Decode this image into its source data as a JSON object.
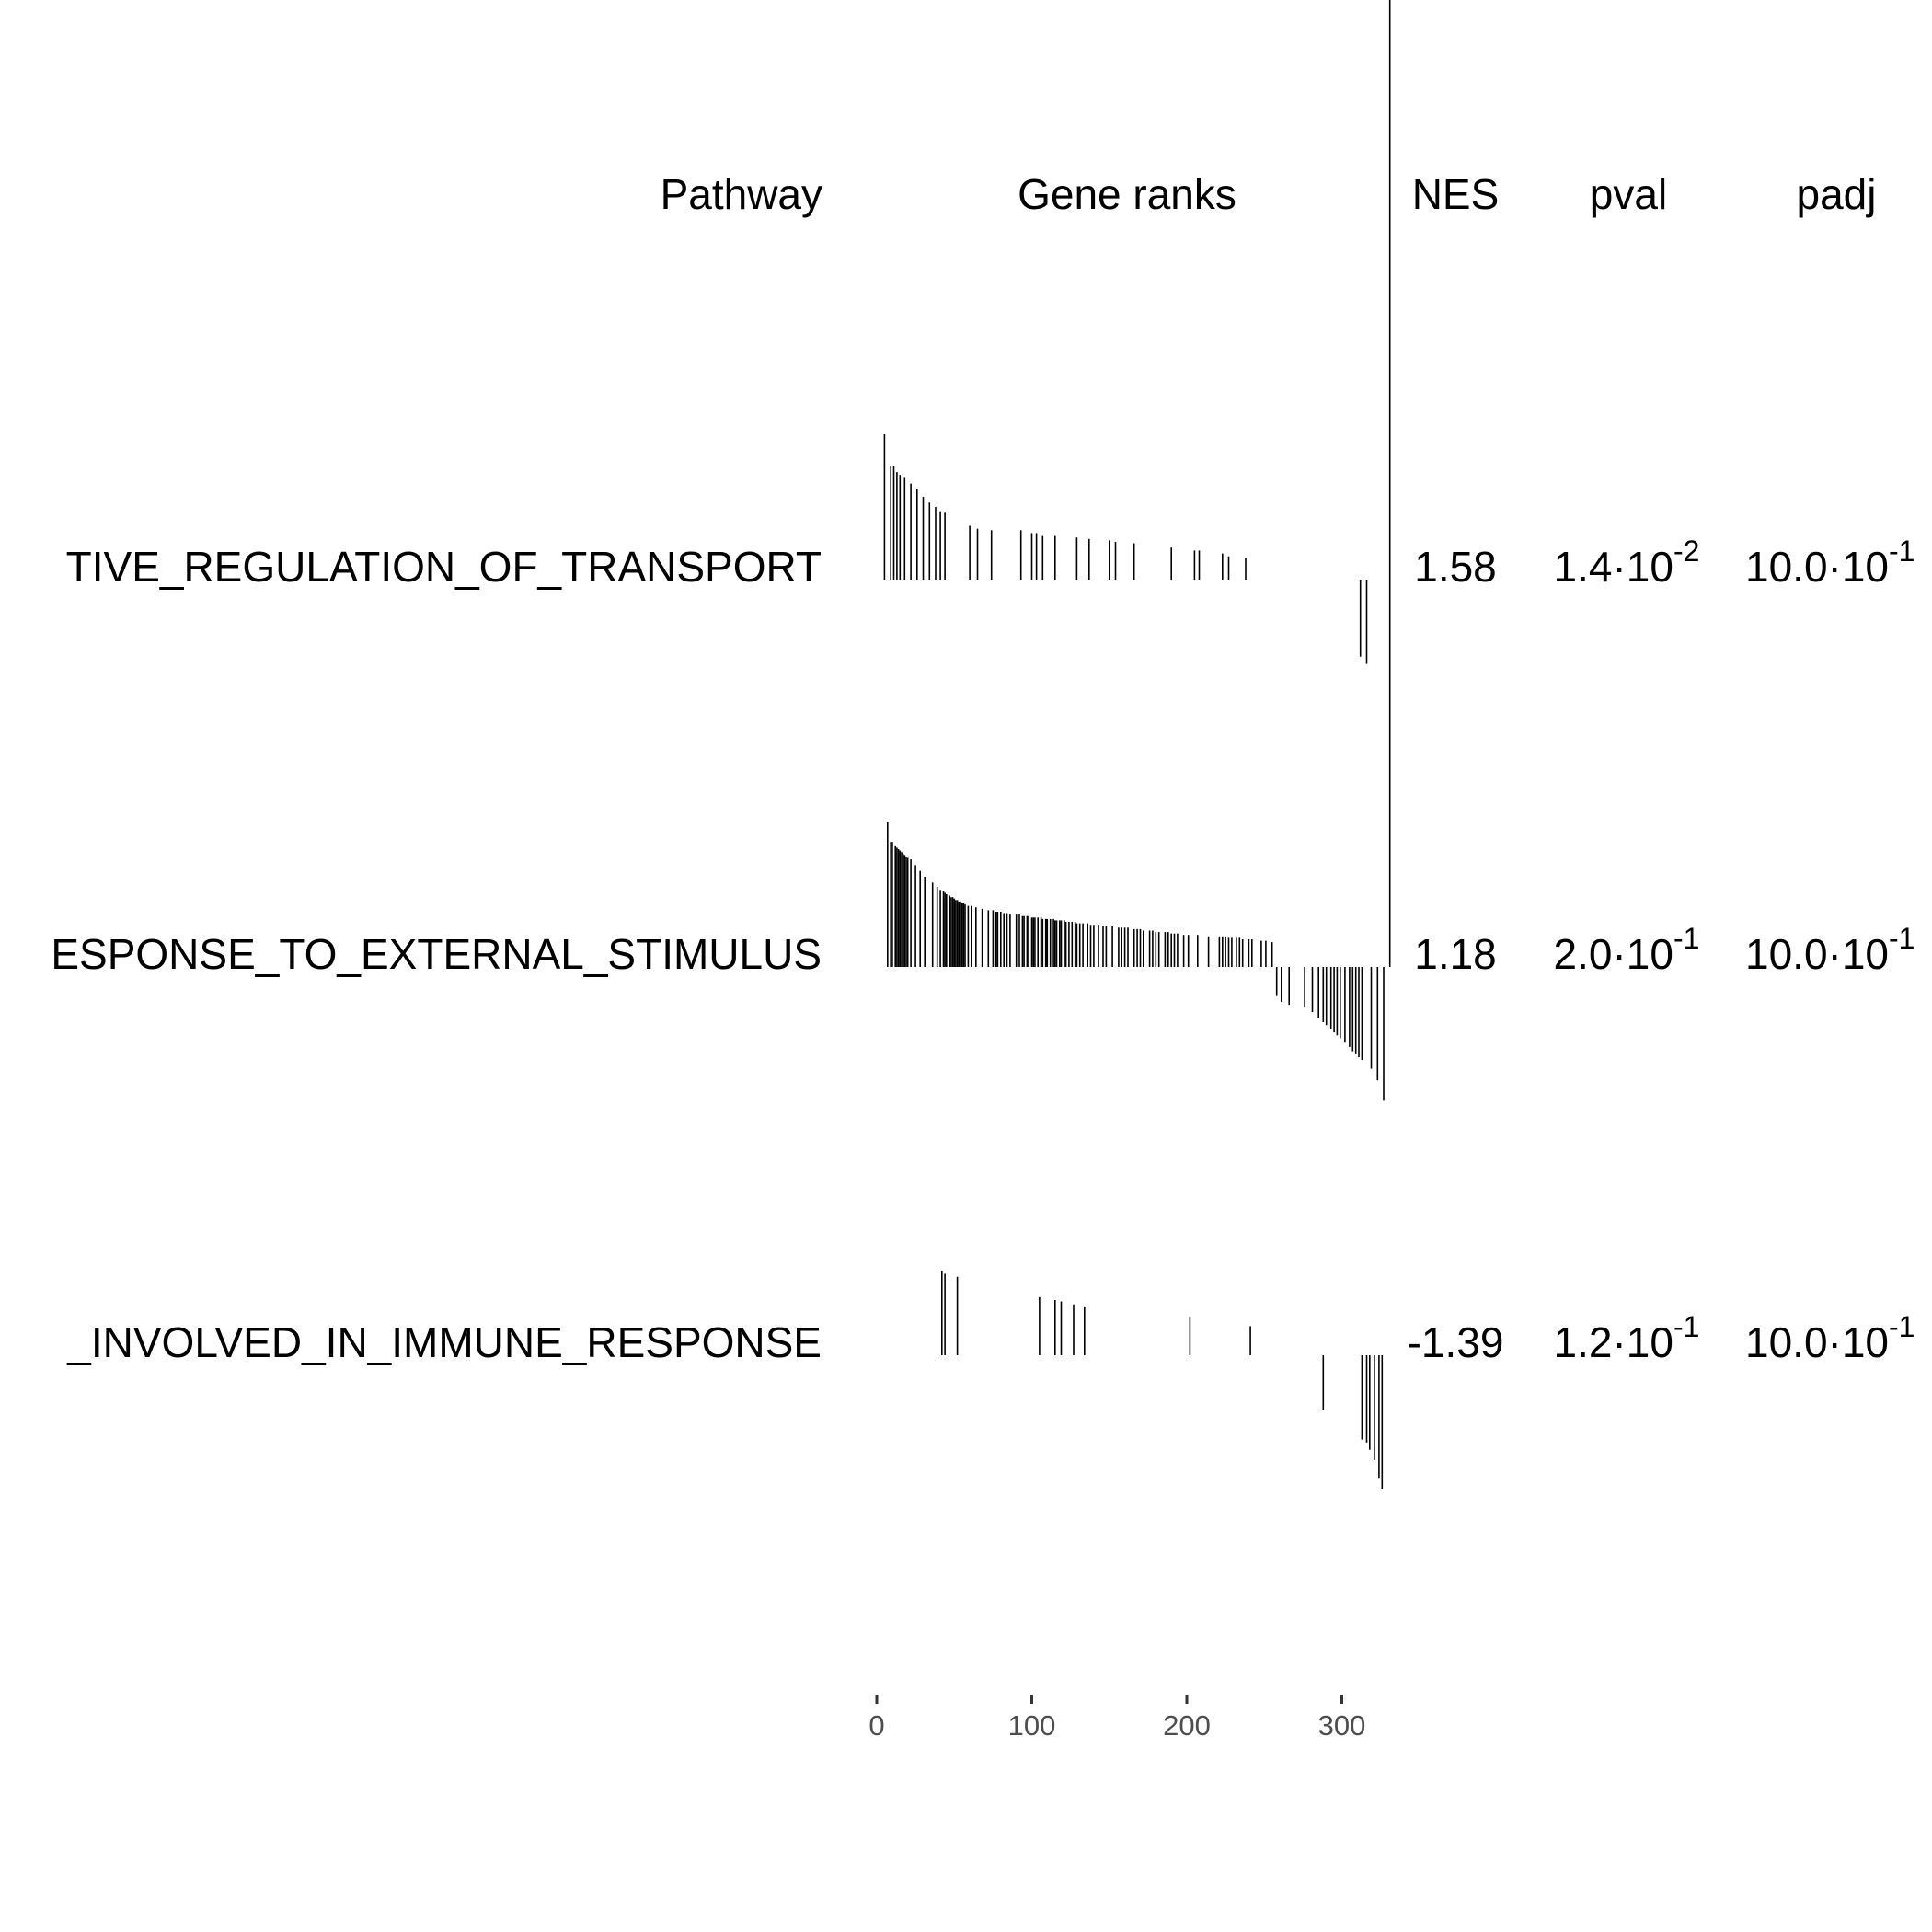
{
  "columns": {
    "pathway": "Pathway",
    "gene_ranks": "Gene ranks",
    "nes": "NES",
    "pval": "pval",
    "padj": "padj"
  },
  "rows": [
    {
      "pathway": "TIVE_REGULATION_OF_TRANSPORT",
      "nes": "1.58",
      "pval_mantissa": "1.4·10",
      "pval_exp": "-2",
      "padj_mantissa": "10.0·10",
      "padj_exp": "-1"
    },
    {
      "pathway": "ESPONSE_TO_EXTERNAL_STIMULUS",
      "nes": "1.18",
      "pval_mantissa": "2.0·10",
      "pval_exp": "-1",
      "padj_mantissa": "10.0·10",
      "padj_exp": "-1"
    },
    {
      "pathway": "_INVOLVED_IN_IMMUNE_RESPONSE",
      "nes": "-1.39",
      "pval_mantissa": "1.2·10",
      "pval_exp": "-1",
      "padj_mantissa": "10.0·10",
      "padj_exp": "-1"
    }
  ],
  "chart_data": {
    "type": "bar",
    "title": "",
    "xlabel": "",
    "ylabel": "",
    "xlim": [
      0,
      330
    ],
    "x_ticks": [
      0,
      100,
      200,
      300
    ],
    "x_tick_labels": [
      "0",
      "100",
      "200",
      "300"
    ],
    "grid": false,
    "series": [
      {
        "name": "TIVE_REGULATION_OF_TRANSPORT",
        "ranks": [
          5,
          9,
          11,
          13,
          15,
          18,
          22,
          26,
          30,
          34,
          38,
          41,
          44,
          60,
          65,
          74,
          93,
          100,
          103,
          107,
          115,
          129,
          137,
          150,
          154,
          166,
          190,
          205,
          208,
          223,
          227,
          238,
          312,
          316
        ],
        "values": [
          1.0,
          0.78,
          0.78,
          0.74,
          0.72,
          0.7,
          0.66,
          0.62,
          0.57,
          0.53,
          0.5,
          0.47,
          0.46,
          0.37,
          0.35,
          0.34,
          0.34,
          0.32,
          0.32,
          0.3,
          0.3,
          0.29,
          0.28,
          0.27,
          0.26,
          0.25,
          0.22,
          0.2,
          0.2,
          0.18,
          0.16,
          0.15,
          -0.53,
          -0.58
        ]
      },
      {
        "name": "ESPONSE_TO_EXTERNAL_STIMULUS",
        "ranks": [
          7,
          9,
          10,
          12,
          13,
          14,
          15,
          16,
          17,
          18,
          19,
          20,
          22,
          25,
          28,
          31,
          36,
          39,
          41,
          43,
          44,
          45,
          47,
          48,
          49,
          50,
          51,
          52,
          53,
          54,
          55,
          56,
          57,
          59,
          61,
          64,
          68,
          72,
          75,
          77,
          78,
          80,
          82,
          84,
          86,
          90,
          92,
          94,
          95,
          97,
          98,
          100,
          101,
          102,
          104,
          106,
          107,
          109,
          110,
          112,
          114,
          115,
          116,
          118,
          119,
          121,
          122,
          124,
          126,
          128,
          129,
          131,
          133,
          136,
          138,
          140,
          143,
          146,
          148,
          152,
          156,
          158,
          160,
          162,
          166,
          168,
          170,
          172,
          176,
          178,
          180,
          182,
          186,
          188,
          190,
          192,
          194,
          198,
          201,
          207,
          214,
          221,
          223,
          225,
          227,
          229,
          232,
          234,
          236,
          240,
          242,
          248,
          251,
          255,
          258,
          261,
          266,
          276,
          281,
          285,
          288,
          290,
          293,
          295,
          297,
          299,
          302,
          305,
          307,
          309,
          311,
          313,
          319,
          323,
          327,
          331
        ],
        "values": [
          1.0,
          0.86,
          0.86,
          0.83,
          0.82,
          0.81,
          0.8,
          0.79,
          0.78,
          0.77,
          0.76,
          0.75,
          0.74,
          0.7,
          0.66,
          0.62,
          0.58,
          0.55,
          0.53,
          0.52,
          0.51,
          0.5,
          0.49,
          0.48,
          0.48,
          0.47,
          0.46,
          0.46,
          0.45,
          0.45,
          0.44,
          0.44,
          0.43,
          0.42,
          0.42,
          0.41,
          0.4,
          0.39,
          0.39,
          0.38,
          0.38,
          0.38,
          0.37,
          0.37,
          0.36,
          0.36,
          0.36,
          0.35,
          0.35,
          0.35,
          0.35,
          0.34,
          0.34,
          0.34,
          0.34,
          0.34,
          0.33,
          0.33,
          0.33,
          0.33,
          0.33,
          0.32,
          0.32,
          0.32,
          0.32,
          0.32,
          0.31,
          0.31,
          0.31,
          0.31,
          0.3,
          0.3,
          0.3,
          0.3,
          0.29,
          0.29,
          0.29,
          0.28,
          0.28,
          0.28,
          0.27,
          0.27,
          0.27,
          0.27,
          0.26,
          0.26,
          0.26,
          0.25,
          0.25,
          0.25,
          0.24,
          0.24,
          0.24,
          0.24,
          0.23,
          0.23,
          0.23,
          0.22,
          0.22,
          0.22,
          0.21,
          0.21,
          0.21,
          0.21,
          0.2,
          0.2,
          0.2,
          0.2,
          0.19,
          0.19,
          0.19,
          0.18,
          0.18,
          0.17,
          -0.2,
          -0.24,
          -0.26,
          -0.28,
          -0.31,
          -0.35,
          -0.38,
          -0.4,
          -0.43,
          -0.45,
          -0.47,
          -0.49,
          -0.52,
          -0.55,
          -0.58,
          -0.6,
          -0.62,
          -0.64,
          -0.7,
          -0.78,
          -0.92
        ]
      },
      {
        "name": "_INVOLVED_IN_IMMUNE_RESPONSE",
        "ranks": [
          42,
          44,
          52,
          105,
          115,
          119,
          127,
          134,
          202,
          241,
          288,
          313,
          316,
          318,
          321,
          324,
          326
        ],
        "values": [
          0.58,
          0.56,
          0.54,
          0.4,
          0.38,
          0.37,
          0.35,
          0.33,
          0.26,
          0.2,
          -0.38,
          -0.58,
          -0.6,
          -0.65,
          -0.72,
          -0.85,
          -0.92
        ]
      }
    ]
  }
}
